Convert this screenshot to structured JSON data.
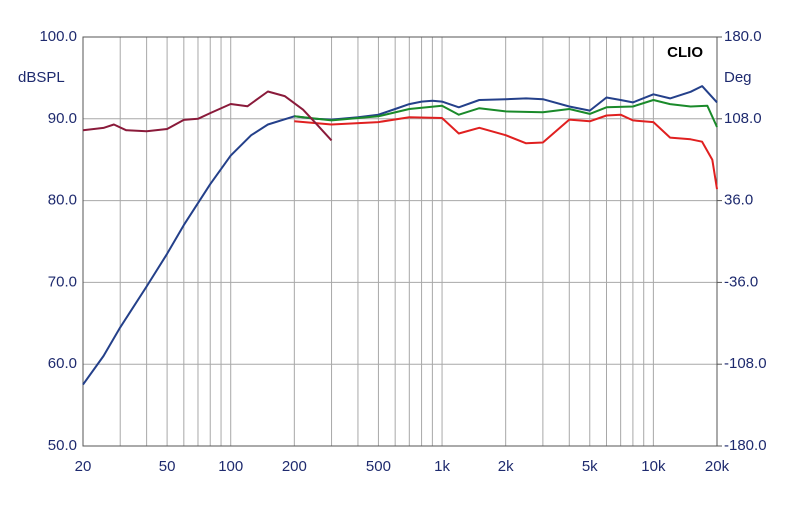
{
  "chart_data": {
    "type": "line",
    "watermark": "CLIO",
    "ylabel": "dBSPL",
    "y2label": "Deg",
    "xscale": "log",
    "xlim": [
      20,
      20000
    ],
    "xticks": [
      20,
      50,
      100,
      200,
      500,
      {
        "value": 1000,
        "label": "1k"
      },
      {
        "value": 2000,
        "label": "2k"
      },
      {
        "value": 5000,
        "label": "5k"
      },
      {
        "value": 10000,
        "label": "10k"
      },
      {
        "value": 20000,
        "label": "20k"
      }
    ],
    "xgrid": [
      30,
      40,
      60,
      70,
      80,
      90,
      300,
      400,
      600,
      700,
      800,
      900,
      3000,
      4000,
      6000,
      7000,
      8000,
      9000
    ],
    "ylim": [
      50,
      100
    ],
    "yticks": [
      {
        "value": 50,
        "label": "50.0"
      },
      {
        "value": 60,
        "label": "60.0"
      },
      {
        "value": 70,
        "label": "70.0"
      },
      {
        "value": 80,
        "label": "80.0"
      },
      {
        "value": 90,
        "label": "90.0"
      },
      {
        "value": 100,
        "label": "100.0"
      }
    ],
    "y2lim": [
      -180,
      180
    ],
    "y2ticks": [
      {
        "value": -180,
        "label": "-180.0"
      },
      {
        "value": -108,
        "label": "-108.0"
      },
      {
        "value": -36,
        "label": "-36.0"
      },
      {
        "value": 36,
        "label": "36.0"
      },
      {
        "value": 108,
        "label": "108.0"
      },
      {
        "value": 180,
        "label": "180.0"
      }
    ],
    "grid": true,
    "series": [
      {
        "color": "#24408a",
        "x": [
          20,
          25,
          30,
          40,
          50,
          60,
          80,
          100,
          125,
          150,
          200,
          250,
          300,
          400,
          500,
          600,
          700,
          800,
          900,
          1000,
          1200,
          1500,
          2000,
          2500,
          3000,
          4000,
          5000,
          6000,
          7000,
          8000,
          10000,
          12000,
          15000,
          17000,
          20000
        ],
        "values": [
          57.5,
          61,
          64.5,
          69.5,
          73.5,
          77,
          82,
          85.5,
          88,
          89.3,
          90.3,
          90,
          89.9,
          90.2,
          90.5,
          91.2,
          91.8,
          92.1,
          92.2,
          92.1,
          91.4,
          92.3,
          92.4,
          92.5,
          92.4,
          91.5,
          91.0,
          92.6,
          92.3,
          92.0,
          93.0,
          92.5,
          93.3,
          94.0,
          92.0
        ]
      },
      {
        "color": "#1a8a2a",
        "x": [
          200,
          300,
          500,
          700,
          1000,
          1200,
          1500,
          2000,
          3000,
          4000,
          5000,
          6000,
          8000,
          10000,
          12000,
          15000,
          18000,
          20000
        ],
        "values": [
          90.3,
          89.8,
          90.3,
          91.2,
          91.6,
          90.5,
          91.3,
          90.9,
          90.8,
          91.2,
          90.6,
          91.4,
          91.5,
          92.3,
          91.8,
          91.5,
          91.6,
          89.0
        ]
      },
      {
        "color": "#e02020",
        "x": [
          200,
          300,
          500,
          700,
          1000,
          1200,
          1500,
          2000,
          2500,
          3000,
          4000,
          5000,
          6000,
          7000,
          8000,
          10000,
          12000,
          15000,
          17000,
          19000,
          20000
        ],
        "values": [
          89.7,
          89.3,
          89.6,
          90.2,
          90.1,
          88.2,
          88.9,
          88.0,
          87.0,
          87.1,
          89.9,
          89.7,
          90.4,
          90.5,
          89.8,
          89.6,
          87.7,
          87.5,
          87.2,
          85.0,
          81.4
        ]
      },
      {
        "color": "#8a1a3a",
        "axis": "y2",
        "x": [
          20,
          25,
          28,
          32,
          40,
          50,
          60,
          70,
          80,
          100,
          120,
          150,
          180,
          220,
          250,
          300
        ],
        "values": [
          98,
          100,
          103,
          98,
          97,
          99,
          107,
          108,
          113,
          121,
          119,
          132,
          128,
          116,
          105,
          89
        ]
      }
    ]
  }
}
